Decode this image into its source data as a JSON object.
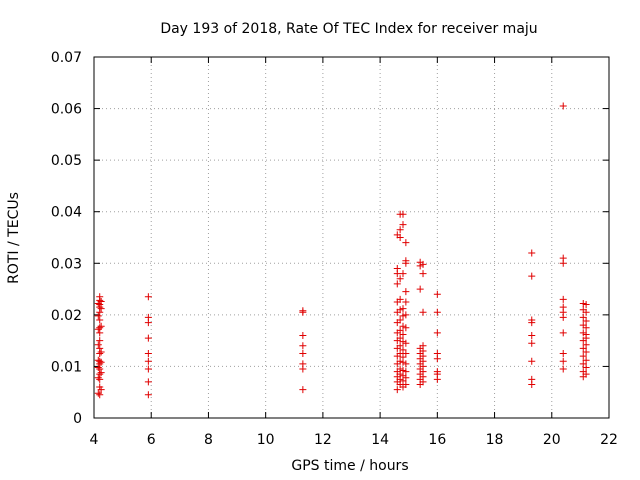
{
  "chart_data": {
    "type": "scatter",
    "title": "Day 193 of 2018, Rate Of TEC Index for receiver maju",
    "xlabel": "GPS time / hours",
    "ylabel": "ROTI / TECUs",
    "xlim": [
      4,
      22
    ],
    "ylim": [
      0,
      0.07
    ],
    "xticks": [
      4,
      6,
      8,
      10,
      12,
      14,
      16,
      18,
      20,
      22
    ],
    "yticks": [
      0,
      0.01,
      0.02,
      0.03,
      0.04,
      0.05,
      0.06,
      0.07
    ],
    "xtick_labels": [
      "4",
      "6",
      "8",
      "10",
      "12",
      "14",
      "16",
      "18",
      "20",
      "22"
    ],
    "ytick_labels": [
      "0",
      "0.01",
      "0.02",
      "0.03",
      "0.04",
      "0.05",
      "0.06",
      "0.07"
    ],
    "grid": true,
    "marker": "+",
    "color": "#e00000",
    "series": [
      {
        "name": "ROTI",
        "points": [
          [
            4.2,
            0.0045
          ],
          [
            4.2,
            0.006
          ],
          [
            4.2,
            0.0075
          ],
          [
            4.2,
            0.0085
          ],
          [
            4.2,
            0.0095
          ],
          [
            4.2,
            0.0105
          ],
          [
            4.2,
            0.011
          ],
          [
            4.2,
            0.0125
          ],
          [
            4.2,
            0.0135
          ],
          [
            4.2,
            0.015
          ],
          [
            4.2,
            0.0165
          ],
          [
            4.2,
            0.0175
          ],
          [
            4.2,
            0.019
          ],
          [
            4.2,
            0.0205
          ],
          [
            4.2,
            0.0215
          ],
          [
            4.2,
            0.022
          ],
          [
            4.2,
            0.0228
          ],
          [
            4.2,
            0.0235
          ],
          [
            4.15,
            0.0048
          ],
          [
            4.15,
            0.0078
          ],
          [
            4.15,
            0.0098
          ],
          [
            4.15,
            0.0112
          ],
          [
            4.15,
            0.0142
          ],
          [
            4.15,
            0.0172
          ],
          [
            4.15,
            0.0198
          ],
          [
            4.15,
            0.0222
          ],
          [
            4.25,
            0.0055
          ],
          [
            4.25,
            0.0088
          ],
          [
            4.25,
            0.0108
          ],
          [
            4.25,
            0.0128
          ],
          [
            4.25,
            0.0178
          ],
          [
            4.25,
            0.0212
          ],
          [
            4.25,
            0.0226
          ],
          [
            5.9,
            0.0045
          ],
          [
            5.9,
            0.007
          ],
          [
            5.9,
            0.0095
          ],
          [
            5.9,
            0.011
          ],
          [
            5.9,
            0.0125
          ],
          [
            5.9,
            0.0155
          ],
          [
            5.9,
            0.0185
          ],
          [
            5.9,
            0.0195
          ],
          [
            5.9,
            0.0235
          ],
          [
            11.3,
            0.0055
          ],
          [
            11.3,
            0.0095
          ],
          [
            11.3,
            0.0105
          ],
          [
            11.3,
            0.0125
          ],
          [
            11.3,
            0.014
          ],
          [
            11.3,
            0.016
          ],
          [
            11.3,
            0.0205
          ],
          [
            11.3,
            0.0208
          ],
          [
            14.6,
            0.0055
          ],
          [
            14.6,
            0.007
          ],
          [
            14.6,
            0.008
          ],
          [
            14.6,
            0.009
          ],
          [
            14.6,
            0.0105
          ],
          [
            14.6,
            0.012
          ],
          [
            14.6,
            0.0135
          ],
          [
            14.6,
            0.015
          ],
          [
            14.6,
            0.0165
          ],
          [
            14.6,
            0.0185
          ],
          [
            14.6,
            0.0205
          ],
          [
            14.6,
            0.0225
          ],
          [
            14.6,
            0.026
          ],
          [
            14.6,
            0.028
          ],
          [
            14.6,
            0.029
          ],
          [
            14.6,
            0.0355
          ],
          [
            14.7,
            0.0065
          ],
          [
            14.7,
            0.0075
          ],
          [
            14.7,
            0.0085
          ],
          [
            14.7,
            0.0095
          ],
          [
            14.7,
            0.011
          ],
          [
            14.7,
            0.0125
          ],
          [
            14.7,
            0.014
          ],
          [
            14.7,
            0.0155
          ],
          [
            14.7,
            0.017
          ],
          [
            14.7,
            0.019
          ],
          [
            14.7,
            0.021
          ],
          [
            14.7,
            0.023
          ],
          [
            14.7,
            0.027
          ],
          [
            14.7,
            0.035
          ],
          [
            14.7,
            0.0365
          ],
          [
            14.7,
            0.0395
          ],
          [
            14.8,
            0.006
          ],
          [
            14.8,
            0.0072
          ],
          [
            14.8,
            0.0082
          ],
          [
            14.8,
            0.0092
          ],
          [
            14.8,
            0.0108
          ],
          [
            14.8,
            0.0118
          ],
          [
            14.8,
            0.0132
          ],
          [
            14.8,
            0.0148
          ],
          [
            14.8,
            0.0162
          ],
          [
            14.8,
            0.0178
          ],
          [
            14.8,
            0.0198
          ],
          [
            14.8,
            0.0212
          ],
          [
            14.8,
            0.028
          ],
          [
            14.8,
            0.0375
          ],
          [
            14.8,
            0.0395
          ],
          [
            14.9,
            0.0065
          ],
          [
            14.9,
            0.0078
          ],
          [
            14.9,
            0.009
          ],
          [
            14.9,
            0.0105
          ],
          [
            14.9,
            0.0125
          ],
          [
            14.9,
            0.0145
          ],
          [
            14.9,
            0.0175
          ],
          [
            14.9,
            0.02
          ],
          [
            14.9,
            0.0225
          ],
          [
            14.9,
            0.0245
          ],
          [
            14.9,
            0.03
          ],
          [
            14.9,
            0.0305
          ],
          [
            14.9,
            0.034
          ],
          [
            15.4,
            0.0065
          ],
          [
            15.4,
            0.0075
          ],
          [
            15.4,
            0.0085
          ],
          [
            15.4,
            0.0095
          ],
          [
            15.4,
            0.0105
          ],
          [
            15.4,
            0.0115
          ],
          [
            15.4,
            0.0125
          ],
          [
            15.4,
            0.0135
          ],
          [
            15.4,
            0.025
          ],
          [
            15.4,
            0.0295
          ],
          [
            15.4,
            0.0302
          ],
          [
            15.5,
            0.007
          ],
          [
            15.5,
            0.008
          ],
          [
            15.5,
            0.009
          ],
          [
            15.5,
            0.01
          ],
          [
            15.5,
            0.011
          ],
          [
            15.5,
            0.012
          ],
          [
            15.5,
            0.013
          ],
          [
            15.5,
            0.014
          ],
          [
            15.5,
            0.0205
          ],
          [
            15.5,
            0.028
          ],
          [
            15.5,
            0.0298
          ],
          [
            16.0,
            0.0075
          ],
          [
            16.0,
            0.0085
          ],
          [
            16.0,
            0.009
          ],
          [
            16.0,
            0.0115
          ],
          [
            16.0,
            0.0125
          ],
          [
            16.0,
            0.0165
          ],
          [
            16.0,
            0.0205
          ],
          [
            16.0,
            0.024
          ],
          [
            19.3,
            0.0065
          ],
          [
            19.3,
            0.0075
          ],
          [
            19.3,
            0.011
          ],
          [
            19.3,
            0.0145
          ],
          [
            19.3,
            0.016
          ],
          [
            19.3,
            0.0185
          ],
          [
            19.3,
            0.019
          ],
          [
            19.3,
            0.0275
          ],
          [
            19.3,
            0.032
          ],
          [
            20.4,
            0.0095
          ],
          [
            20.4,
            0.011
          ],
          [
            20.4,
            0.0125
          ],
          [
            20.4,
            0.0165
          ],
          [
            20.4,
            0.0195
          ],
          [
            20.4,
            0.0205
          ],
          [
            20.4,
            0.0215
          ],
          [
            20.4,
            0.023
          ],
          [
            20.4,
            0.03
          ],
          [
            20.4,
            0.031
          ],
          [
            20.4,
            0.0605
          ],
          [
            21.1,
            0.008
          ],
          [
            21.1,
            0.009
          ],
          [
            21.1,
            0.0105
          ],
          [
            21.1,
            0.012
          ],
          [
            21.1,
            0.0135
          ],
          [
            21.1,
            0.015
          ],
          [
            21.1,
            0.0165
          ],
          [
            21.1,
            0.018
          ],
          [
            21.1,
            0.0195
          ],
          [
            21.1,
            0.021
          ],
          [
            21.1,
            0.0222
          ],
          [
            21.2,
            0.0085
          ],
          [
            21.2,
            0.0098
          ],
          [
            21.2,
            0.0112
          ],
          [
            21.2,
            0.0128
          ],
          [
            21.2,
            0.0142
          ],
          [
            21.2,
            0.0155
          ],
          [
            21.2,
            0.0162
          ],
          [
            21.2,
            0.0175
          ],
          [
            21.2,
            0.0188
          ],
          [
            21.2,
            0.0205
          ],
          [
            21.2,
            0.022
          ]
        ]
      }
    ]
  }
}
